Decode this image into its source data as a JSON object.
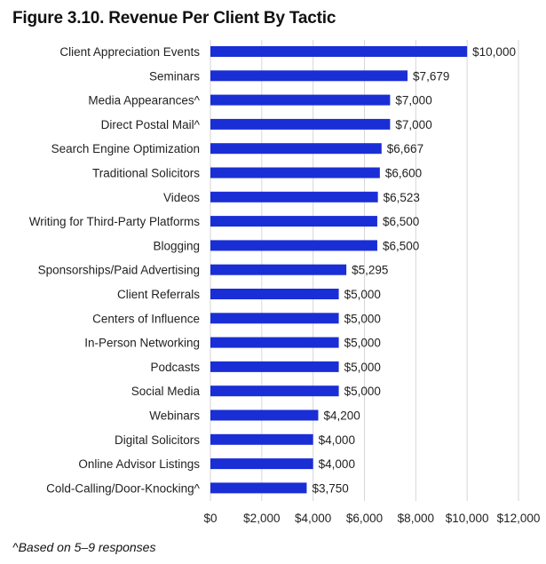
{
  "title": "Figure 3.10. Revenue Per Client By Tactic",
  "footnote": "^Based on 5–9 responses",
  "colors": {
    "bar": "#1a2ed6",
    "grid": "#d6d6d6",
    "text": "#222222"
  },
  "chart_data": {
    "type": "bar",
    "orientation": "horizontal",
    "title": "Figure 3.10. Revenue Per Client By Tactic",
    "xlabel": "",
    "ylabel": "",
    "xlim": [
      0,
      12000
    ],
    "grid": true,
    "categories": [
      "Client Appreciation Events",
      "Seminars",
      "Media Appearances^",
      "Direct Postal Mail^",
      "Search Engine Optimization",
      "Traditional Solicitors",
      "Videos",
      "Writing for Third-Party Platforms",
      "Blogging",
      "Sponsorships/Paid Advertising",
      "Client Referrals",
      "Centers of Influence",
      "In-Person Networking",
      "Podcasts",
      "Social Media",
      "Webinars",
      "Digital Solicitors",
      "Online Advisor Listings",
      "Cold-Calling/Door-Knocking^"
    ],
    "values": [
      10000,
      7679,
      7000,
      7000,
      6667,
      6600,
      6523,
      6500,
      6500,
      5295,
      5000,
      5000,
      5000,
      5000,
      5000,
      4200,
      4000,
      4000,
      3750
    ],
    "value_labels": [
      "$10,000",
      "$7,679",
      "$7,000",
      "$7,000",
      "$6,667",
      "$6,600",
      "$6,523",
      "$6,500",
      "$6,500",
      "$5,295",
      "$5,000",
      "$5,000",
      "$5,000",
      "$5,000",
      "$5,000",
      "$4,200",
      "$4,000",
      "$4,000",
      "$3,750"
    ],
    "ticks": [
      0,
      2000,
      4000,
      6000,
      8000,
      10000,
      12000
    ],
    "tick_labels": [
      "$0",
      "$2,000",
      "$4,000",
      "$6,000",
      "$8,000",
      "$10,000",
      "$12,000"
    ]
  }
}
